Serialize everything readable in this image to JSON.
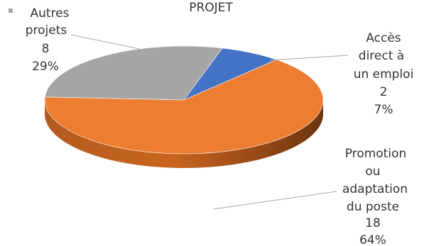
{
  "chart_data": {
    "type": "pie",
    "title": "PROJET",
    "categories": [
      "Accès direct à un emploi",
      "Promotion ou adaptation du poste",
      "Autres projets"
    ],
    "values": [
      2,
      18,
      8
    ],
    "percents": [
      "7%",
      "64%",
      "29%"
    ],
    "colors": [
      "#4472C4",
      "#ED7D31",
      "#A5A5A5"
    ],
    "legend": "top-left",
    "labels": [
      {
        "lines": [
          "Accès",
          "direct à",
          "un emploi"
        ],
        "value": "2",
        "percent": "7%"
      },
      {
        "lines": [
          "Promotion",
          "ou",
          "adaptation",
          "du poste"
        ],
        "value": "18",
        "percent": "64%"
      },
      {
        "lines": [
          "Autres",
          "projets"
        ],
        "value": "8",
        "percent": "29%"
      }
    ]
  }
}
